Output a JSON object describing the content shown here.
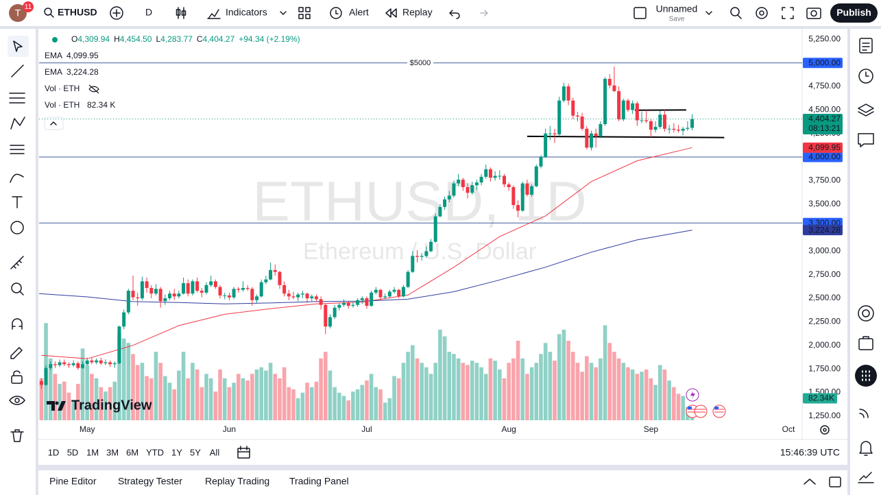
{
  "toolbar": {
    "avatar": "T",
    "badge": "11",
    "symbol": "ETHUSD",
    "interval": "D",
    "indicators": "Indicators",
    "alert": "Alert",
    "replay": "Replay",
    "layout_name": "Unnamed",
    "save": "Save",
    "publish": "Publish"
  },
  "chart_data": {
    "type": "candlestick",
    "watermark": {
      "title": "ETHUSD, 1D",
      "subtitle": "Ethereum / U.S. Dollar"
    },
    "logo": "TradingView",
    "legend": {
      "ohlc_prefixes": [
        "O",
        "H",
        "L",
        "C"
      ],
      "ohlc_labels": [
        "4,309.94",
        "4,454.50",
        "4,283.77",
        "4,404.27"
      ],
      "change": "+94.34 (+2.19%)"
    },
    "up_color": "#089981",
    "down_color": "#f23645",
    "xlim": [
      -0.5,
      166
    ],
    "ylim": [
      1190,
      5340
    ],
    "vlim": [
      0,
      900
    ],
    "xticks": [
      {
        "value": 10,
        "label": "May"
      },
      {
        "value": 41,
        "label": "Jun"
      },
      {
        "value": 71,
        "label": "Jul"
      },
      {
        "value": 102,
        "label": "Aug"
      },
      {
        "value": 133,
        "label": "Sep"
      },
      {
        "value": 163,
        "label": "Oct"
      }
    ],
    "yticks": [
      {
        "value": 1250,
        "label": "1,250.00"
      },
      {
        "value": 1500,
        "label": "1,500.00"
      },
      {
        "value": 1750,
        "label": "1,750.00"
      },
      {
        "value": 2000,
        "label": "2,000.00"
      },
      {
        "value": 2250,
        "label": "2,250.00"
      },
      {
        "value": 2500,
        "label": "2,500.00"
      },
      {
        "value": 2750,
        "label": "2,750.00"
      },
      {
        "value": 3000,
        "label": "3,000.00"
      },
      {
        "value": 3250,
        "label": "3,250.00"
      },
      {
        "value": 3500,
        "label": "3,500.00"
      },
      {
        "value": 3750,
        "label": "3,750.00"
      },
      {
        "value": 4000,
        "label": "4,000.00"
      },
      {
        "value": 4250,
        "label": "4,250.00"
      },
      {
        "value": 4500,
        "label": "4,500.00"
      },
      {
        "value": 4750,
        "label": "4,750.00"
      },
      {
        "value": 5000,
        "label": "5,000.00"
      },
      {
        "value": 5250,
        "label": "5,250.00"
      }
    ],
    "candles": [
      [
        1620,
        1650,
        1540,
        1580
      ],
      [
        1580,
        1790,
        1570,
        1760
      ],
      [
        1760,
        1830,
        1740,
        1800
      ],
      [
        1800,
        1830,
        1760,
        1790
      ],
      [
        1790,
        1850,
        1770,
        1820
      ],
      [
        1820,
        1850,
        1780,
        1800
      ],
      [
        1800,
        1820,
        1760,
        1790
      ],
      [
        1790,
        1840,
        1770,
        1810
      ],
      [
        1810,
        1830,
        1740,
        1760
      ],
      [
        1760,
        1830,
        1750,
        1800
      ],
      [
        1800,
        1870,
        1790,
        1840
      ],
      [
        1840,
        1870,
        1800,
        1820
      ],
      [
        1820,
        1860,
        1800,
        1840
      ],
      [
        1840,
        1870,
        1790,
        1810
      ],
      [
        1810,
        1850,
        1790,
        1820
      ],
      [
        1820,
        1840,
        1770,
        1800
      ],
      [
        1800,
        1830,
        1760,
        1810
      ],
      [
        1810,
        2210,
        1800,
        2200
      ],
      [
        2200,
        2380,
        2170,
        2350
      ],
      [
        2350,
        2600,
        2330,
        2580
      ],
      [
        2580,
        2740,
        2480,
        2510
      ],
      [
        2510,
        2560,
        2420,
        2500
      ],
      [
        2500,
        2730,
        2480,
        2680
      ],
      [
        2680,
        2720,
        2560,
        2610
      ],
      [
        2610,
        2640,
        2500,
        2550
      ],
      [
        2550,
        2650,
        2530,
        2600
      ],
      [
        2600,
        2620,
        2400,
        2470
      ],
      [
        2470,
        2540,
        2430,
        2500
      ],
      [
        2500,
        2580,
        2480,
        2550
      ],
      [
        2550,
        2600,
        2480,
        2520
      ],
      [
        2520,
        2580,
        2500,
        2550
      ],
      [
        2550,
        2720,
        2540,
        2660
      ],
      [
        2660,
        2700,
        2520,
        2550
      ],
      [
        2550,
        2700,
        2530,
        2680
      ],
      [
        2680,
        2720,
        2560,
        2580
      ],
      [
        2580,
        2610,
        2510,
        2560
      ],
      [
        2560,
        2670,
        2540,
        2640
      ],
      [
        2640,
        2740,
        2620,
        2680
      ],
      [
        2680,
        2700,
        2600,
        2620
      ],
      [
        2620,
        2640,
        2500,
        2530
      ],
      [
        2530,
        2560,
        2490,
        2530
      ],
      [
        2530,
        2560,
        2480,
        2510
      ],
      [
        2510,
        2620,
        2490,
        2600
      ],
      [
        2600,
        2620,
        2560,
        2590
      ],
      [
        2590,
        2680,
        2570,
        2610
      ],
      [
        2610,
        2640,
        2580,
        2600
      ],
      [
        2600,
        2620,
        2420,
        2480
      ],
      [
        2480,
        2540,
        2450,
        2520
      ],
      [
        2520,
        2700,
        2510,
        2670
      ],
      [
        2670,
        2740,
        2650,
        2700
      ],
      [
        2700,
        2880,
        2690,
        2800
      ],
      [
        2800,
        2860,
        2740,
        2780
      ],
      [
        2780,
        2790,
        2600,
        2640
      ],
      [
        2640,
        2680,
        2520,
        2550
      ],
      [
        2550,
        2590,
        2480,
        2520
      ],
      [
        2520,
        2570,
        2490,
        2510
      ],
      [
        2510,
        2560,
        2470,
        2540
      ],
      [
        2540,
        2580,
        2500,
        2550
      ],
      [
        2550,
        2560,
        2450,
        2500
      ],
      [
        2500,
        2540,
        2470,
        2520
      ],
      [
        2520,
        2540,
        2460,
        2490
      ],
      [
        2490,
        2520,
        2380,
        2430
      ],
      [
        2430,
        2440,
        2120,
        2200
      ],
      [
        2200,
        2330,
        2180,
        2300
      ],
      [
        2300,
        2430,
        2280,
        2400
      ],
      [
        2400,
        2450,
        2370,
        2430
      ],
      [
        2430,
        2490,
        2410,
        2450
      ],
      [
        2450,
        2470,
        2390,
        2420
      ],
      [
        2420,
        2460,
        2400,
        2430
      ],
      [
        2430,
        2500,
        2410,
        2480
      ],
      [
        2480,
        2520,
        2440,
        2500
      ],
      [
        2500,
        2520,
        2390,
        2420
      ],
      [
        2420,
        2580,
        2410,
        2560
      ],
      [
        2560,
        2620,
        2540,
        2590
      ],
      [
        2590,
        2600,
        2480,
        2510
      ],
      [
        2510,
        2550,
        2490,
        2520
      ],
      [
        2520,
        2590,
        2500,
        2570
      ],
      [
        2570,
        2620,
        2550,
        2590
      ],
      [
        2590,
        2600,
        2500,
        2520
      ],
      [
        2520,
        2640,
        2510,
        2620
      ],
      [
        2620,
        2800,
        2610,
        2780
      ],
      [
        2780,
        3000,
        2770,
        2950
      ],
      [
        2950,
        3010,
        2880,
        2940
      ],
      [
        2940,
        2980,
        2900,
        2950
      ],
      [
        2950,
        3050,
        2930,
        3000
      ],
      [
        3000,
        3130,
        2990,
        3100
      ],
      [
        3100,
        3400,
        3090,
        3370
      ],
      [
        3370,
        3500,
        3360,
        3470
      ],
      [
        3470,
        3580,
        3440,
        3550
      ],
      [
        3550,
        3640,
        3520,
        3590
      ],
      [
        3590,
        3750,
        3570,
        3720
      ],
      [
        3720,
        3820,
        3690,
        3760
      ],
      [
        3760,
        3780,
        3640,
        3680
      ],
      [
        3680,
        3720,
        3560,
        3620
      ],
      [
        3620,
        3740,
        3600,
        3700
      ],
      [
        3700,
        3760,
        3650,
        3730
      ],
      [
        3730,
        3820,
        3700,
        3790
      ],
      [
        3790,
        3920,
        3770,
        3870
      ],
      [
        3870,
        3890,
        3740,
        3780
      ],
      [
        3780,
        3850,
        3750,
        3800
      ],
      [
        3800,
        3860,
        3760,
        3800
      ],
      [
        3800,
        3820,
        3680,
        3710
      ],
      [
        3710,
        3730,
        3640,
        3680
      ],
      [
        3680,
        3700,
        3450,
        3490
      ],
      [
        3490,
        3540,
        3360,
        3430
      ],
      [
        3430,
        3740,
        3420,
        3720
      ],
      [
        3720,
        3760,
        3580,
        3600
      ],
      [
        3600,
        3710,
        3580,
        3690
      ],
      [
        3690,
        3920,
        3680,
        3900
      ],
      [
        3900,
        4020,
        3880,
        4000
      ],
      [
        4000,
        4300,
        3990,
        4250
      ],
      [
        4250,
        4330,
        4180,
        4250
      ],
      [
        4250,
        4300,
        4150,
        4240
      ],
      [
        4240,
        4640,
        4220,
        4600
      ],
      [
        4600,
        4790,
        4580,
        4750
      ],
      [
        4750,
        4780,
        4550,
        4600
      ],
      [
        4600,
        4630,
        4400,
        4440
      ],
      [
        4440,
        4480,
        4380,
        4430
      ],
      [
        4430,
        4470,
        4280,
        4300
      ],
      [
        4300,
        4330,
        4080,
        4100
      ],
      [
        4100,
        4280,
        4070,
        4250
      ],
      [
        4250,
        4300,
        4100,
        4220
      ],
      [
        4220,
        4380,
        4200,
        4350
      ],
      [
        4350,
        4850,
        4330,
        4830
      ],
      [
        4830,
        4880,
        4730,
        4760
      ],
      [
        4760,
        4960,
        4690,
        4700
      ],
      [
        4700,
        4750,
        4380,
        4400
      ],
      [
        4400,
        4620,
        4380,
        4600
      ],
      [
        4600,
        4620,
        4480,
        4500
      ],
      [
        4500,
        4600,
        4460,
        4570
      ],
      [
        4570,
        4590,
        4330,
        4390
      ],
      [
        4390,
        4480,
        4360,
        4390
      ],
      [
        4390,
        4500,
        4360,
        4380
      ],
      [
        4380,
        4400,
        4210,
        4290
      ],
      [
        4290,
        4380,
        4260,
        4320
      ],
      [
        4320,
        4490,
        4300,
        4450
      ],
      [
        4450,
        4500,
        4270,
        4300
      ],
      [
        4300,
        4340,
        4250,
        4300
      ],
      [
        4300,
        4360,
        4260,
        4290
      ],
      [
        4290,
        4340,
        4260,
        4280
      ],
      [
        4280,
        4320,
        4230,
        4300
      ],
      [
        4300,
        4380,
        4280,
        4309.94
      ],
      [
        4309.94,
        4454.5,
        4283.77,
        4404.27
      ]
    ],
    "volume": {
      "values": [
        380,
        880,
        560,
        420,
        330,
        350,
        250,
        180,
        330,
        650,
        500,
        420,
        380,
        300,
        260,
        300,
        350,
        780,
        740,
        700,
        600,
        500,
        520,
        400,
        380,
        620,
        520,
        400,
        340,
        280,
        450,
        620,
        380,
        520,
        460,
        300,
        420,
        380,
        260,
        460,
        380,
        300,
        340,
        420,
        380,
        360,
        420,
        460,
        480,
        450,
        520,
        420,
        380,
        480,
        300,
        280,
        200,
        250,
        340,
        300,
        350,
        560,
        620,
        450,
        300,
        250,
        220,
        180,
        260,
        280,
        320,
        360,
        420,
        300,
        280,
        160,
        200,
        400,
        380,
        520,
        620,
        680,
        560,
        520,
        480,
        420,
        520,
        820,
        760,
        620,
        600,
        560,
        520,
        500,
        540,
        520,
        480,
        420,
        560,
        540,
        460,
        380,
        520,
        560,
        720,
        560,
        420,
        480,
        520,
        600,
        700,
        620,
        540,
        780,
        820,
        720,
        620,
        520,
        440,
        580,
        520,
        480,
        560,
        860,
        700,
        620,
        560,
        520,
        480,
        460,
        420,
        440,
        460,
        380,
        320,
        500,
        460,
        360,
        300,
        240,
        220,
        120,
        82.34
      ],
      "last_label": "82.34K"
    },
    "volume_legends": [
      {
        "name": "Vol · ETH",
        "hidden": true
      },
      {
        "name": "Vol · ETH",
        "label": "82.34 K"
      }
    ],
    "series": [
      {
        "name": "EMA",
        "color": "#f23645",
        "x": [
          0,
          10,
          20,
          30,
          40,
          50,
          60,
          70,
          80,
          90,
          100,
          110,
          120,
          130,
          142
        ],
        "values": [
          1895,
          1858,
          2000,
          2210,
          2330,
          2390,
          2440,
          2460,
          2535,
          2830,
          3155,
          3375,
          3740,
          3960,
          4099.95
        ],
        "last_label": "4,099.95"
      },
      {
        "name": "EMA",
        "color": "#2e3c9e",
        "x": [
          -0.5,
          10,
          20,
          30,
          40,
          50,
          60,
          70,
          80,
          90,
          100,
          110,
          120,
          130,
          142
        ],
        "values": [
          2550,
          2515,
          2465,
          2455,
          2440,
          2450,
          2465,
          2470,
          2490,
          2570,
          2695,
          2830,
          2990,
          3120,
          3224.28
        ],
        "last_label": "3,224.28"
      }
    ],
    "hlines": [
      {
        "value": 5000,
        "label": "5,000.00",
        "text": "$5000"
      },
      {
        "value": 4000,
        "label": "4,000.00"
      },
      {
        "value": 3300,
        "label": "3,300.00"
      }
    ],
    "trendlines": [
      {
        "x": [
          106,
          149
        ],
        "y": [
          4220,
          4207
        ]
      },
      {
        "x": [
          129.5,
          140.7
        ],
        "y": [
          4497,
          4500
        ]
      }
    ],
    "last_price_label": "4,404.27",
    "countdown": "08:13:21"
  },
  "range_buttons": [
    "1D",
    "5D",
    "1M",
    "3M",
    "6M",
    "YTD",
    "1Y",
    "5Y",
    "All"
  ],
  "clock": "15:46:39 UTC",
  "bottom_tabs": [
    "Pine Editor",
    "Strategy Tester",
    "Replay Trading",
    "Trading Panel"
  ]
}
